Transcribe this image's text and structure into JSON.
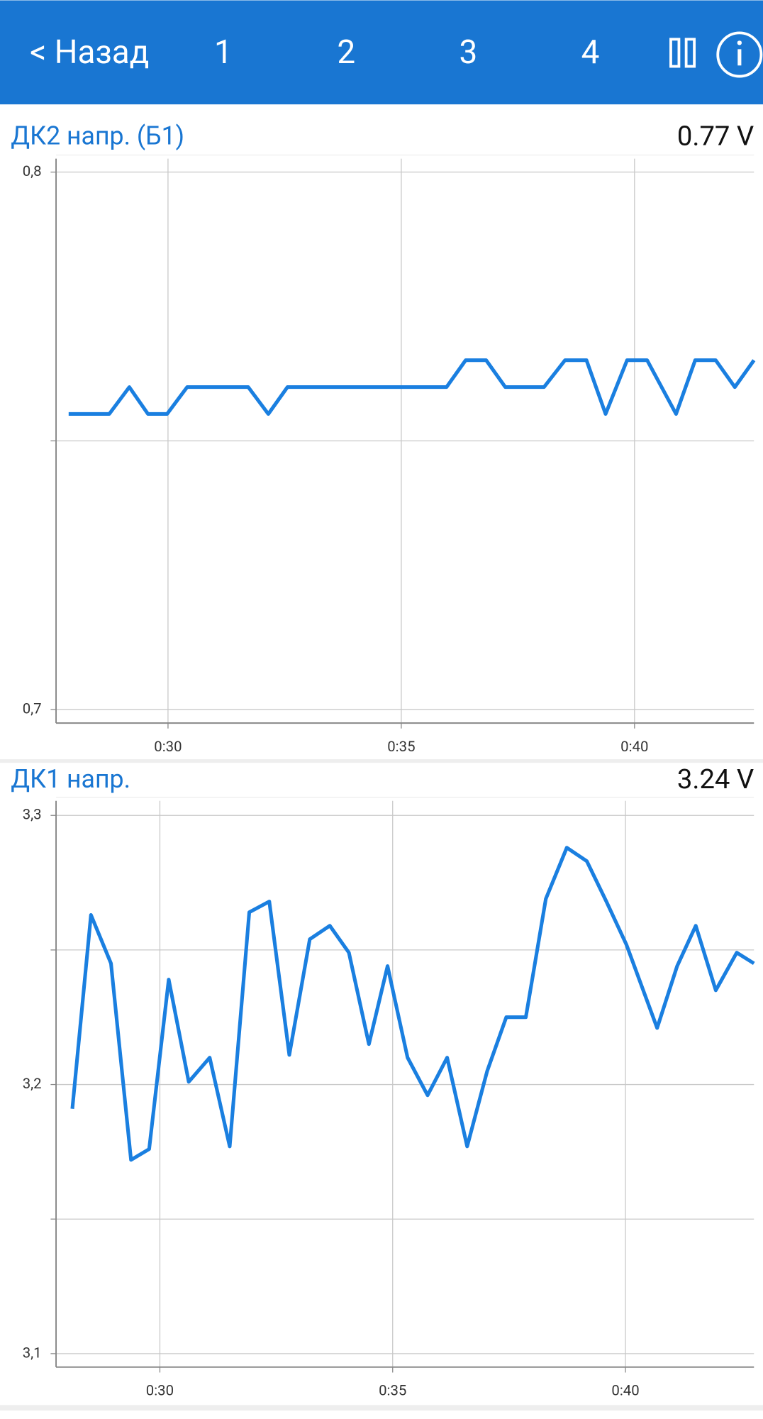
{
  "header": {
    "back": "< Назад",
    "tabs": [
      "1",
      "2",
      "3",
      "4"
    ]
  },
  "chart_data": [
    {
      "type": "line",
      "title": "ДК2 напр. (Б1)",
      "current_value": "0.77 V",
      "x": [
        27.87,
        28.74,
        29.17,
        29.57,
        29.98,
        30.41,
        31.72,
        32.15,
        32.56,
        35.97,
        36.38,
        36.82,
        37.23,
        38.06,
        38.51,
        38.97,
        39.38,
        39.84,
        40.27,
        40.89,
        41.3,
        41.74,
        42.15,
        42.56
      ],
      "series": [
        {
          "color": "#1a7fe0",
          "values": [
            0.755,
            0.755,
            0.76,
            0.755,
            0.755,
            0.76,
            0.76,
            0.755,
            0.76,
            0.76,
            0.765,
            0.765,
            0.76,
            0.76,
            0.765,
            0.765,
            0.755,
            0.765,
            0.765,
            0.755,
            0.765,
            0.765,
            0.76,
            0.765
          ]
        }
      ],
      "xlim": [
        27.6,
        42.56
      ],
      "ylim": [
        0.6975,
        0.8025
      ],
      "xticks": [
        {
          "value": 30,
          "label": "0:30"
        },
        {
          "value": 35,
          "label": "0:35"
        },
        {
          "value": 40,
          "label": "0:40"
        }
      ],
      "yticks": [
        {
          "value": 0.7,
          "label": "0,7"
        },
        {
          "value": 0.75,
          "label": null
        },
        {
          "value": 0.8,
          "label": "0,8"
        }
      ],
      "grid": true
    },
    {
      "type": "line",
      "title": "ДК1 напр.",
      "current_value": "3.24 V",
      "x": [
        28.12,
        28.52,
        28.95,
        29.38,
        29.77,
        30.19,
        30.62,
        31.07,
        31.5,
        31.92,
        32.35,
        32.78,
        33.22,
        33.65,
        34.06,
        34.49,
        34.89,
        35.32,
        35.75,
        36.17,
        36.6,
        37.03,
        37.44,
        37.86,
        38.29,
        38.74,
        39.17,
        39.59,
        40.02,
        40.68,
        41.11,
        41.51,
        41.94,
        42.39,
        42.76
      ],
      "series": [
        {
          "color": "#1a7fe0",
          "values": [
            3.191,
            3.263,
            3.245,
            3.172,
            3.176,
            3.239,
            3.201,
            3.21,
            3.177,
            3.264,
            3.268,
            3.211,
            3.254,
            3.259,
            3.249,
            3.215,
            3.244,
            3.21,
            3.196,
            3.21,
            3.177,
            3.205,
            3.225,
            3.225,
            3.269,
            3.288,
            3.283,
            3.268,
            3.252,
            3.221,
            3.244,
            3.259,
            3.235,
            3.249,
            3.245
          ]
        }
      ],
      "xlim": [
        27.77,
        42.76
      ],
      "ylim": [
        3.095,
        3.3054
      ],
      "xticks": [
        {
          "value": 30,
          "label": "0:30"
        },
        {
          "value": 35,
          "label": "0:35"
        },
        {
          "value": 40,
          "label": "0:40"
        }
      ],
      "yticks": [
        {
          "value": 3.1,
          "label": "3,1"
        },
        {
          "value": 3.15,
          "label": null
        },
        {
          "value": 3.2,
          "label": "3,2"
        },
        {
          "value": 3.25,
          "label": null
        },
        {
          "value": 3.3,
          "label": "3,3"
        }
      ],
      "grid": true
    }
  ]
}
